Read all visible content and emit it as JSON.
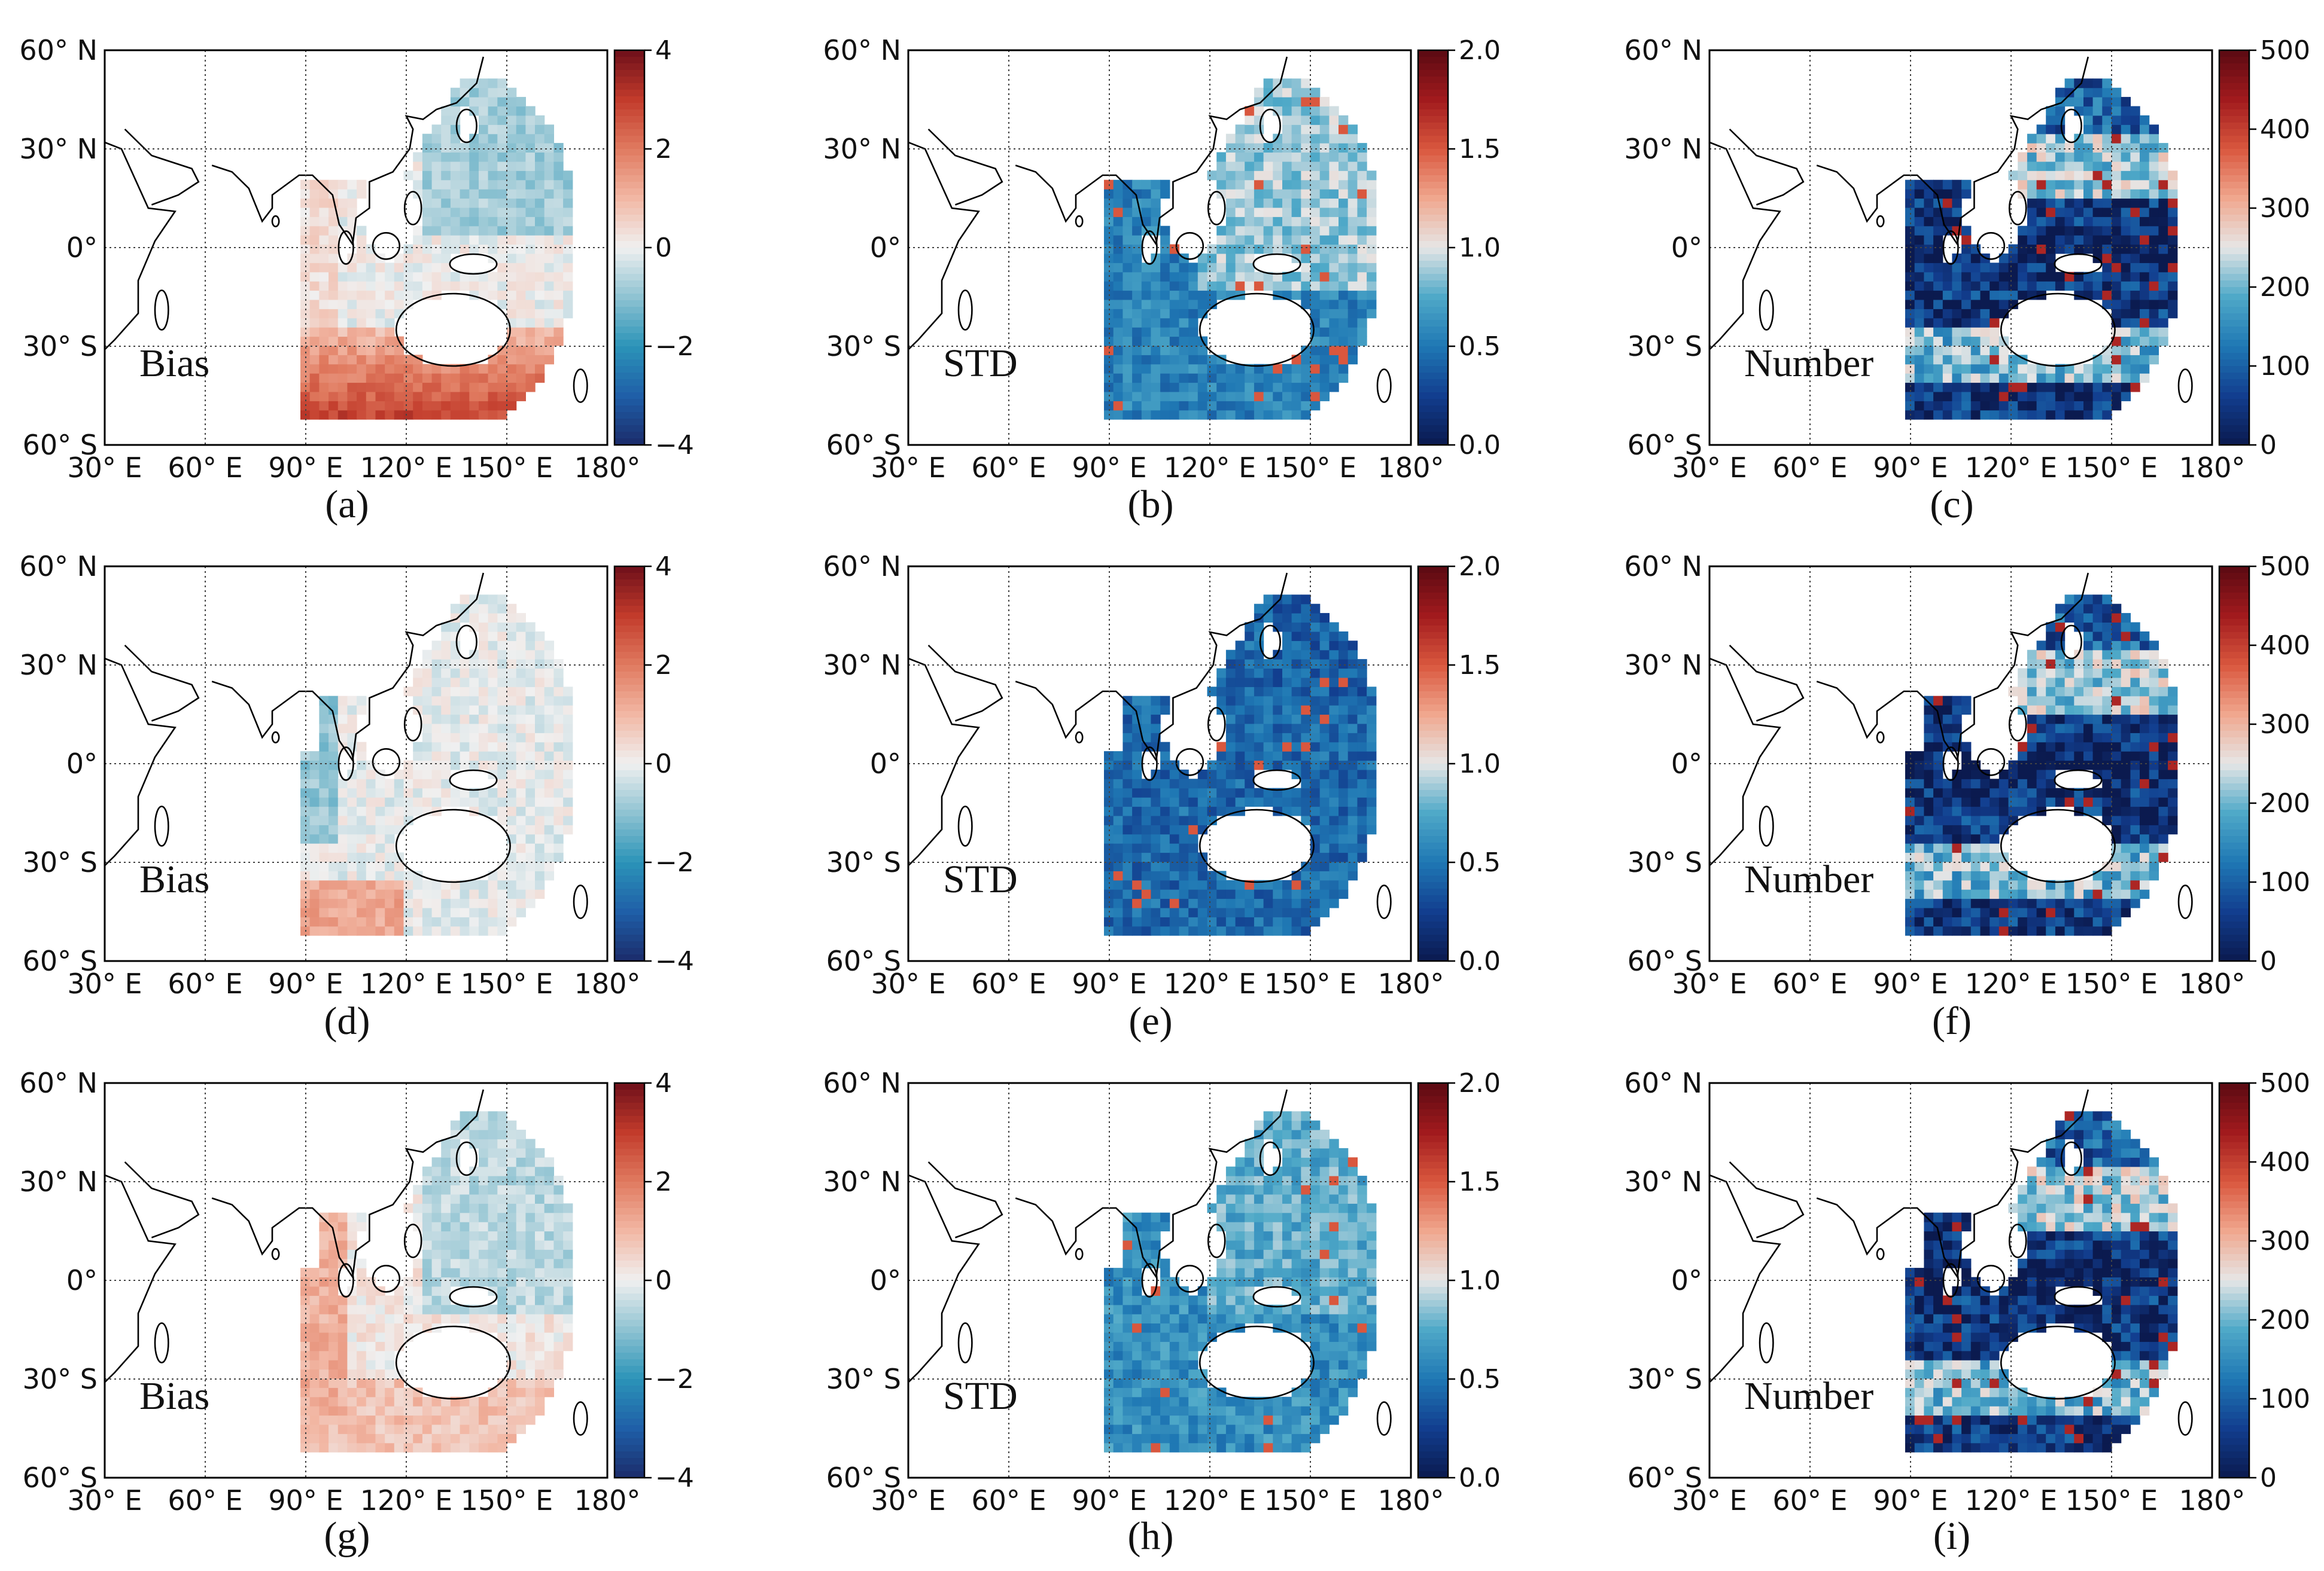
{
  "chart_data": {
    "type": "heatmap",
    "description_axes": {
      "lon_ticks": [
        "30° E",
        "60° E",
        "90° E",
        "120° E",
        "150° E",
        "180°"
      ],
      "lat_ticks": [
        "60° N",
        "30° N",
        "0°",
        "30° S",
        "60° S"
      ],
      "lon_range": [
        30,
        180
      ],
      "lat_range": [
        -60,
        60
      ]
    },
    "panels": [
      {
        "tag": "(a)",
        "label": "Bias",
        "kind": "bias",
        "scale": "diverging",
        "vmin": -4,
        "vmax": 4,
        "cbar_ticks": [
          "4",
          "2",
          "0",
          "−2",
          "−4"
        ],
        "cbar_values": [
          4,
          2,
          0,
          -2,
          -4
        ],
        "variant": 1
      },
      {
        "tag": "(b)",
        "label": "STD",
        "kind": "std",
        "scale": "sequential",
        "vmin": 0,
        "vmax": 2,
        "cbar_ticks": [
          "2.0",
          "1.5",
          "1.0",
          "0.5",
          "0.0"
        ],
        "cbar_values": [
          2,
          1.5,
          1,
          0.5,
          0
        ],
        "variant": 1
      },
      {
        "tag": "(c)",
        "label": "Number",
        "kind": "number",
        "scale": "sequential",
        "vmin": 0,
        "vmax": 500,
        "cbar_ticks": [
          "500",
          "400",
          "300",
          "200",
          "100",
          "0"
        ],
        "cbar_values": [
          500,
          400,
          300,
          200,
          100,
          0
        ],
        "variant": 1
      },
      {
        "tag": "(d)",
        "label": "Bias",
        "kind": "bias",
        "scale": "diverging",
        "vmin": -4,
        "vmax": 4,
        "cbar_ticks": [
          "4",
          "2",
          "0",
          "−2",
          "−4"
        ],
        "cbar_values": [
          4,
          2,
          0,
          -2,
          -4
        ],
        "variant": 2
      },
      {
        "tag": "(e)",
        "label": "STD",
        "kind": "std",
        "scale": "sequential",
        "vmin": 0,
        "vmax": 2,
        "cbar_ticks": [
          "2.0",
          "1.5",
          "1.0",
          "0.5",
          "0.0"
        ],
        "cbar_values": [
          2,
          1.5,
          1,
          0.5,
          0
        ],
        "variant": 2
      },
      {
        "tag": "(f)",
        "label": "Number",
        "kind": "number",
        "scale": "sequential",
        "vmin": 0,
        "vmax": 500,
        "cbar_ticks": [
          "500",
          "400",
          "300",
          "200",
          "100",
          "0"
        ],
        "cbar_values": [
          500,
          400,
          300,
          200,
          100,
          0
        ],
        "variant": 2
      },
      {
        "tag": "(g)",
        "label": "Bias",
        "kind": "bias",
        "scale": "diverging",
        "vmin": -4,
        "vmax": 4,
        "cbar_ticks": [
          "4",
          "2",
          "0",
          "−2",
          "−4"
        ],
        "cbar_values": [
          4,
          2,
          0,
          -2,
          -4
        ],
        "variant": 3
      },
      {
        "tag": "(h)",
        "label": "STD",
        "kind": "std",
        "scale": "sequential",
        "vmin": 0,
        "vmax": 2,
        "cbar_ticks": [
          "2.0",
          "1.5",
          "1.0",
          "0.5",
          "0.0"
        ],
        "cbar_values": [
          2,
          1.5,
          1,
          0.5,
          0
        ],
        "variant": 3
      },
      {
        "tag": "(i)",
        "label": "Number",
        "kind": "number",
        "scale": "sequential",
        "vmin": 0,
        "vmax": 500,
        "cbar_ticks": [
          "500",
          "400",
          "300",
          "200",
          "100",
          "0"
        ],
        "cbar_values": [
          500,
          400,
          300,
          200,
          100,
          0
        ],
        "variant": 3
      }
    ]
  },
  "colors": {
    "diverging": [
      "#1b2c6b",
      "#1f5fa8",
      "#2b94b8",
      "#8fc3d2",
      "#f0f0f0",
      "#f2b7a4",
      "#e07a5f",
      "#c23b2b",
      "#6e0f1a"
    ],
    "sequential": [
      "#0b1a4f",
      "#123e8f",
      "#1f78b4",
      "#4fa9c8",
      "#e6e6e6",
      "#f0a78e",
      "#d9573e",
      "#a11a1d",
      "#5a0a12"
    ],
    "land": "#ffffff",
    "coast": "#000000",
    "grid": "#444444"
  }
}
